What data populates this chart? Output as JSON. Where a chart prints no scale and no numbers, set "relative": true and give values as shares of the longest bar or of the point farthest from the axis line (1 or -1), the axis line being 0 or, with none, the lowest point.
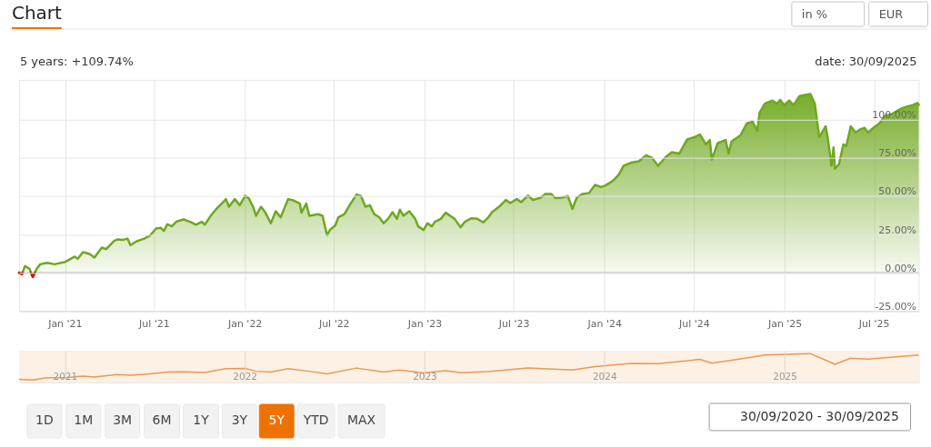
{
  "chart_data": [
    {
      "type": "area",
      "title": "Chart",
      "subtitle": "5 years: +109.74%",
      "annotations": [
        "date: 30/09/2025",
        "in %",
        "EUR",
        "1D",
        "1M",
        "3M",
        "6M",
        "1Y",
        "3Y",
        "5Y",
        "YTD",
        "MAX",
        "30/09/2020 - 30/09/2025"
      ],
      "xlim": [
        "2020-09-30",
        "2025-09-30"
      ],
      "xticks": [
        {
          "value": "2021-01-01",
          "label": "Jan '21"
        },
        {
          "value": "2021-07-01",
          "label": "Jul '21"
        },
        {
          "value": "2022-01-01",
          "label": "Jan '22"
        },
        {
          "value": "2022-07-01",
          "label": "Jul '22"
        },
        {
          "value": "2023-01-01",
          "label": "Jan '23"
        },
        {
          "value": "2023-07-01",
          "label": "Jul '23"
        },
        {
          "value": "2024-01-01",
          "label": "Jan '24"
        },
        {
          "value": "2024-07-01",
          "label": "Jul '24"
        },
        {
          "value": "2025-01-01",
          "label": "Jan '25"
        },
        {
          "value": "2025-07-01",
          "label": "Jul '25"
        }
      ],
      "ylim": [
        -25,
        126
      ],
      "yticks": [
        {
          "value": -25,
          "label": "-25.00%"
        },
        {
          "value": 0,
          "label": "0.00%"
        },
        {
          "value": 25,
          "label": "25.00%"
        },
        {
          "value": 50,
          "label": "50.00%"
        },
        {
          "value": 75,
          "label": "75.00%"
        },
        {
          "value": 100,
          "label": "100.00%"
        }
      ],
      "grid": true,
      "ref_lines": [
        {
          "axis": "y",
          "value": 0,
          "color": "#cccccc"
        }
      ],
      "series": [
        {
          "color": "#6fa81e",
          "x": [
            "2020-09-30",
            "2020-10-06",
            "2020-10-12",
            "2020-10-21",
            "2020-10-28",
            "2020-11-05",
            "2020-11-12",
            "2020-11-26",
            "2020-12-11",
            "2021-01-02",
            "2021-01-21",
            "2021-01-27",
            "2021-02-07",
            "2021-02-20",
            "2021-03-02",
            "2021-03-17",
            "2021-03-26",
            "2021-04-11",
            "2021-04-17",
            "2021-04-29",
            "2021-05-08",
            "2021-05-14",
            "2021-05-26",
            "2021-06-11",
            "2021-06-23",
            "2021-07-05",
            "2021-07-15",
            "2021-07-21",
            "2021-07-28",
            "2021-08-06",
            "2021-08-15",
            "2021-08-30",
            "2021-09-12",
            "2021-09-24",
            "2021-10-06",
            "2021-10-12",
            "2021-10-24",
            "2021-11-06",
            "2021-11-24",
            "2021-11-30",
            "2021-12-12",
            "2021-12-22",
            "2022-01-02",
            "2022-01-09",
            "2022-01-18",
            "2022-01-24",
            "2022-02-03",
            "2022-02-12",
            "2022-02-23",
            "2022-03-05",
            "2022-03-15",
            "2022-03-30",
            "2022-04-11",
            "2022-04-23",
            "2022-04-26",
            "2022-05-06",
            "2022-05-12",
            "2022-05-30",
            "2022-06-08",
            "2022-06-17",
            "2022-06-23",
            "2022-07-04",
            "2022-07-10",
            "2022-07-22",
            "2022-08-03",
            "2022-08-16",
            "2022-08-25",
            "2022-09-03",
            "2022-09-12",
            "2022-09-21",
            "2022-10-01",
            "2022-10-10",
            "2022-10-19",
            "2022-10-28",
            "2022-11-06",
            "2022-11-12",
            "2022-11-19",
            "2022-12-01",
            "2022-12-13",
            "2022-12-19",
            "2022-12-30",
            "2023-01-07",
            "2023-01-16",
            "2023-01-22",
            "2023-02-03",
            "2023-02-13",
            "2023-02-22",
            "2023-03-03",
            "2023-03-15",
            "2023-03-24",
            "2023-04-06",
            "2023-04-18",
            "2023-04-30",
            "2023-05-09",
            "2023-05-18",
            "2023-06-03",
            "2023-06-15",
            "2023-06-24",
            "2023-07-07",
            "2023-07-16",
            "2023-07-30",
            "2023-08-09",
            "2023-08-25",
            "2023-09-03",
            "2023-09-15",
            "2023-09-24",
            "2023-10-07",
            "2023-10-19",
            "2023-10-28",
            "2023-11-06",
            "2023-11-18",
            "2023-12-01",
            "2023-12-13",
            "2023-12-25",
            "2024-01-03",
            "2024-01-18",
            "2024-01-30",
            "2024-02-09",
            "2024-02-24",
            "2024-03-11",
            "2024-03-26",
            "2024-04-07",
            "2024-04-19",
            "2024-05-05",
            "2024-05-17",
            "2024-06-01",
            "2024-06-17",
            "2024-07-03",
            "2024-07-13",
            "2024-07-25",
            "2024-08-02",
            "2024-08-06",
            "2024-08-18",
            "2024-09-03",
            "2024-09-09",
            "2024-09-15",
            "2024-10-03",
            "2024-10-16",
            "2024-10-28",
            "2024-11-06",
            "2024-11-11",
            "2024-11-22",
            "2024-12-07",
            "2024-12-16",
            "2024-12-23",
            "2024-12-31",
            "2025-01-10",
            "2025-01-19",
            "2025-01-31",
            "2025-02-16",
            "2025-02-22",
            "2025-03-03",
            "2025-03-12",
            "2025-03-18",
            "2025-03-25",
            "2025-03-29",
            "2025-04-06",
            "2025-04-10",
            "2025-04-13",
            "2025-04-21",
            "2025-04-30",
            "2025-05-06",
            "2025-05-15",
            "2025-05-25",
            "2025-06-03",
            "2025-06-12",
            "2025-06-19",
            "2025-06-30",
            "2025-07-12",
            "2025-07-24",
            "2025-08-06",
            "2025-08-24",
            "2025-09-05",
            "2025-09-18",
            "2025-09-27",
            "2025-09-30"
          ],
          "values": [
            0,
            -1.0,
            4.3,
            2.6,
            -2.8,
            2.6,
            5.5,
            6.5,
            5.5,
            7.1,
            10.5,
            9.1,
            13.4,
            12.3,
            9.9,
            16.4,
            15.4,
            20.8,
            21.7,
            21.4,
            22.3,
            18.0,
            20.4,
            22.3,
            24.3,
            28.9,
            29.3,
            27.3,
            31.7,
            30.3,
            33.3,
            34.8,
            33.3,
            31.3,
            33.3,
            31.3,
            37.2,
            42.2,
            48.1,
            43.1,
            48.1,
            44.1,
            50.3,
            48.7,
            43.1,
            37.2,
            43.1,
            39.2,
            32.3,
            40.2,
            36.2,
            48.1,
            47.1,
            45.2,
            39.2,
            45.2,
            37.2,
            38.2,
            37.2,
            24.4,
            28.0,
            31.0,
            36.2,
            38.2,
            44.7,
            51.1,
            50.1,
            43.1,
            44.1,
            38.2,
            36.2,
            32.3,
            35.2,
            39.6,
            35.2,
            41.2,
            37.2,
            40.2,
            35.2,
            30.3,
            27.9,
            32.3,
            30.3,
            33.3,
            35.2,
            39.2,
            37.2,
            35.2,
            29.7,
            33.3,
            35.6,
            35.2,
            32.9,
            35.6,
            39.6,
            43.6,
            47.5,
            45.5,
            48.1,
            46.1,
            50.5,
            47.5,
            49.1,
            51.5,
            51.5,
            48.7,
            49.1,
            50.1,
            41.6,
            49.1,
            51.5,
            52.1,
            57.4,
            56.0,
            57.0,
            60.0,
            64.0,
            69.9,
            71.9,
            72.8,
            76.8,
            74.9,
            69.9,
            75.8,
            78.8,
            77.8,
            87.1,
            88.7,
            90.3,
            83.8,
            86.7,
            73.9,
            84.7,
            86.7,
            77.8,
            85.7,
            89.7,
            97.6,
            98.6,
            92.7,
            104.6,
            110.5,
            112.5,
            110.5,
            112.9,
            109.5,
            112.5,
            109.5,
            115.4,
            116.5,
            116.8,
            110.5,
            88.7,
            91.7,
            95.7,
            88.7,
            69.9,
            81.8,
            67.9,
            70.9,
            83.8,
            82.8,
            95.7,
            91.7,
            93.6,
            94.6,
            91.7,
            94.6,
            97.6,
            102.6,
            103.6,
            107.0,
            108.5,
            109.5,
            110.9,
            109.7
          ]
        },
        {
          "type": "line",
          "color": "#c4161c",
          "x": [
            "2020-09-30",
            "2020-10-06",
            "2020-10-07",
            "2020-10-15",
            "2020-10-24",
            "2020-10-28",
            "2020-11-01"
          ],
          "values": [
            0,
            -1.0,
            0,
            null,
            0,
            -2.8,
            0
          ]
        }
      ]
    },
    {
      "type": "line",
      "relative": true,
      "x": [
        "2020-09-30",
        "2020-10-28",
        "2020-11-26",
        "2021-01-02",
        "2021-02-07",
        "2021-03-02",
        "2021-04-17",
        "2021-05-14",
        "2021-06-23",
        "2021-07-28",
        "2021-08-30",
        "2021-10-12",
        "2021-11-24",
        "2022-01-02",
        "2022-01-24",
        "2022-02-23",
        "2022-03-30",
        "2022-05-12",
        "2022-06-17",
        "2022-08-16",
        "2022-10-10",
        "2022-11-12",
        "2022-12-30",
        "2023-02-13",
        "2023-03-15",
        "2023-05-09",
        "2023-07-30",
        "2023-10-28",
        "2023-12-13",
        "2024-02-24",
        "2024-04-19",
        "2024-07-13",
        "2024-08-06",
        "2024-10-16",
        "2024-11-22",
        "2025-02-22",
        "2025-04-13",
        "2025-05-15",
        "2025-06-19",
        "2025-09-30"
      ],
      "series": [
        {
          "color": "#e89a55",
          "values": [
            0.11,
            0.09,
            0.17,
            0.17,
            0.22,
            0.19,
            0.28,
            0.25,
            0.3,
            0.36,
            0.37,
            0.35,
            0.48,
            0.49,
            0.39,
            0.36,
            0.48,
            0.39,
            0.3,
            0.5,
            0.36,
            0.43,
            0.33,
            0.41,
            0.34,
            0.38,
            0.5,
            0.43,
            0.55,
            0.66,
            0.65,
            0.8,
            0.67,
            0.85,
            0.95,
            1,
            0.63,
            0.84,
            0.81,
            0.95
          ]
        }
      ],
      "xlim": [
        "2020-09-30",
        "2025-09-30"
      ],
      "xticks": [
        {
          "value": "2021-01-01",
          "label": "2021"
        },
        {
          "value": "2022-01-01",
          "label": "2022"
        },
        {
          "value": "2023-01-01",
          "label": "2023"
        },
        {
          "value": "2024-01-01",
          "label": "2024"
        },
        {
          "value": "2025-01-01",
          "label": "2025"
        }
      ],
      "bands": [
        {
          "axis": "x",
          "from": "2020-09-30",
          "to": "2025-09-30",
          "color": "#fdf0e4"
        }
      ],
      "grid": "x",
      "tick_labels": "x"
    }
  ]
}
